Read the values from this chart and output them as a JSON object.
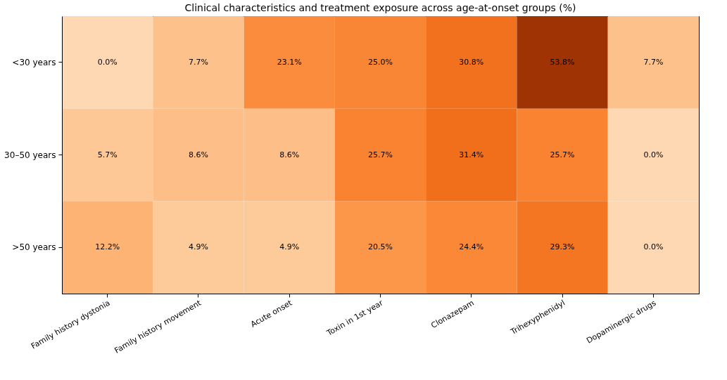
{
  "chart_data": {
    "type": "heatmap",
    "title": "Clinical characteristics and treatment exposure across age-at-onset groups (%)",
    "categories": [
      "Family history dystonia",
      "Family history movement",
      "Acute onset",
      "Toxin in 1st year",
      "Clonazepam",
      "Trihexyphenidyl",
      "Dopaminergic drugs"
    ],
    "y_categories": [
      "<30 years",
      "30–50 years",
      ">50 years"
    ],
    "cells": [
      [
        0.0,
        7.7,
        23.1,
        25.0,
        30.8,
        53.8,
        7.7
      ],
      [
        5.7,
        8.6,
        8.6,
        25.7,
        31.4,
        25.7,
        0.0
      ],
      [
        12.2,
        4.9,
        4.9,
        20.5,
        24.4,
        29.3,
        0.0
      ]
    ],
    "cell_labels": [
      [
        "0.0%",
        "7.7%",
        "23.1%",
        "25.0%",
        "30.8%",
        "53.8%",
        "7.7%"
      ],
      [
        "5.7%",
        "8.6%",
        "8.6%",
        "25.7%",
        "31.4%",
        "25.7%",
        "0.0%"
      ],
      [
        "12.2%",
        "4.9%",
        "4.9%",
        "20.5%",
        "24.4%",
        "29.3%",
        "0.0%"
      ]
    ]
  }
}
